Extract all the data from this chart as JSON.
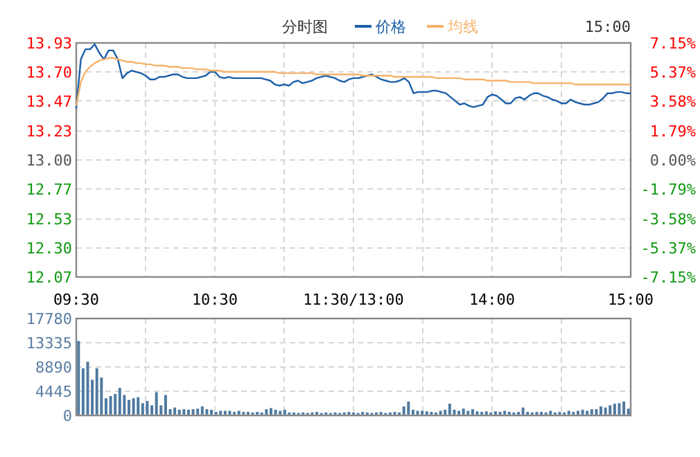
{
  "chart_data": [
    {
      "type": "line",
      "title": "分时图",
      "legend": "top",
      "grid": true,
      "annotations": [
        "15:00"
      ],
      "categories": [
        "09:30",
        null,
        null,
        null,
        null,
        null,
        null,
        null,
        null,
        null,
        null,
        null,
        null,
        null,
        null,
        null,
        null,
        null,
        null,
        null,
        null,
        null,
        null,
        null,
        null,
        null,
        null,
        null,
        null,
        null,
        "10:30",
        null,
        null,
        null,
        null,
        null,
        null,
        null,
        null,
        null,
        null,
        null,
        null,
        null,
        null,
        null,
        null,
        null,
        null,
        null,
        null,
        null,
        null,
        null,
        null,
        null,
        null,
        null,
        null,
        null,
        "11:30/13:00",
        null,
        null,
        null,
        null,
        null,
        null,
        null,
        null,
        null,
        null,
        null,
        null,
        null,
        null,
        null,
        null,
        null,
        null,
        null,
        null,
        null,
        null,
        null,
        null,
        null,
        null,
        null,
        null,
        null,
        "14:00",
        null,
        null,
        null,
        null,
        null,
        null,
        null,
        null,
        null,
        null,
        null,
        null,
        null,
        null,
        null,
        null,
        null,
        null,
        null,
        null,
        null,
        null,
        null,
        null,
        null,
        null,
        null,
        null,
        null,
        "15:00"
      ],
      "ylim": [
        12.07,
        13.93
      ],
      "yticks": [
        13.93,
        {
          "value": 13.7,
          "label": "13.70"
        },
        13.47,
        13.23,
        {
          "value": 13.0,
          "label": "13.00"
        },
        12.77,
        12.53,
        {
          "value": 12.3,
          "label": "12.30"
        },
        12.07
      ],
      "y2lim": [
        -7.15,
        7.15
      ],
      "y2ticks": [
        {
          "value": 7.15,
          "label": "7.15%"
        },
        {
          "value": 5.37,
          "label": "5.37%"
        },
        {
          "value": 3.58,
          "label": "3.58%"
        },
        {
          "value": 1.79,
          "label": "1.79%"
        },
        {
          "value": 0,
          "label": "0.00%"
        },
        {
          "value": -1.79,
          "label": "-1.79%"
        },
        {
          "value": -3.58,
          "label": "-3.58%"
        },
        {
          "value": -5.37,
          "label": "-5.37%"
        },
        {
          "value": -7.15,
          "label": "-7.15%"
        }
      ],
      "series": [
        {
          "name": "价格",
          "color": "#1c5fa8",
          "values": [
            13.41,
            13.8,
            13.88,
            13.88,
            13.92,
            13.85,
            13.8,
            13.87,
            13.87,
            13.8,
            13.65,
            13.69,
            13.71,
            13.7,
            13.69,
            13.67,
            13.64,
            13.64,
            13.66,
            13.66,
            13.67,
            13.68,
            13.68,
            13.66,
            13.65,
            13.65,
            13.65,
            13.66,
            13.67,
            13.7,
            13.7,
            13.66,
            13.65,
            13.66,
            13.65,
            13.65,
            13.65,
            13.65,
            13.65,
            13.65,
            13.65,
            13.64,
            13.63,
            13.6,
            13.59,
            13.6,
            13.59,
            13.62,
            13.63,
            13.61,
            13.62,
            13.63,
            13.65,
            13.66,
            13.67,
            13.66,
            13.65,
            13.63,
            13.62,
            13.64,
            13.65,
            13.65,
            13.66,
            13.67,
            13.68,
            13.66,
            13.64,
            13.63,
            13.62,
            13.62,
            13.63,
            13.65,
            13.62,
            13.53,
            13.54,
            13.54,
            13.54,
            13.55,
            13.55,
            13.54,
            13.53,
            13.5,
            13.47,
            13.44,
            13.45,
            13.43,
            13.42,
            13.43,
            13.44,
            13.5,
            13.52,
            13.51,
            13.48,
            13.45,
            13.45,
            13.49,
            13.5,
            13.48,
            13.51,
            13.53,
            13.53,
            13.51,
            13.5,
            13.48,
            13.47,
            13.45,
            13.45,
            13.48,
            13.46,
            13.45,
            13.44,
            13.44,
            13.45,
            13.46,
            13.49,
            13.53,
            13.53,
            13.54,
            13.54,
            13.53,
            13.53
          ]
        },
        {
          "name": "均线",
          "color": "#f5b26b",
          "values": [
            13.43,
            13.62,
            13.7,
            13.74,
            13.77,
            13.79,
            13.8,
            13.81,
            13.81,
            13.8,
            13.79,
            13.78,
            13.78,
            13.77,
            13.77,
            13.76,
            13.76,
            13.75,
            13.75,
            13.75,
            13.74,
            13.74,
            13.74,
            13.73,
            13.73,
            13.73,
            13.72,
            13.72,
            13.72,
            13.71,
            13.71,
            13.71,
            13.7,
            13.7,
            13.7,
            13.7,
            13.7,
            13.7,
            13.7,
            13.7,
            13.7,
            13.7,
            13.7,
            13.7,
            13.69,
            13.69,
            13.69,
            13.69,
            13.69,
            13.69,
            13.69,
            13.69,
            13.68,
            13.68,
            13.68,
            13.68,
            13.68,
            13.68,
            13.68,
            13.68,
            13.68,
            13.68,
            13.67,
            13.67,
            13.67,
            13.67,
            13.67,
            13.67,
            13.67,
            13.66,
            13.66,
            13.66,
            13.66,
            13.66,
            13.66,
            13.66,
            13.66,
            13.66,
            13.65,
            13.65,
            13.65,
            13.65,
            13.65,
            13.65,
            13.64,
            13.64,
            13.64,
            13.64,
            13.64,
            13.63,
            13.63,
            13.63,
            13.63,
            13.63,
            13.62,
            13.62,
            13.62,
            13.62,
            13.62,
            13.61,
            13.61,
            13.61,
            13.61,
            13.61,
            13.61,
            13.61,
            13.61,
            13.61,
            13.6,
            13.6,
            13.6,
            13.6,
            13.6,
            13.6,
            13.6,
            13.6,
            13.6,
            13.6,
            13.6,
            13.6,
            13.6
          ]
        }
      ]
    },
    {
      "type": "bar",
      "grid": true,
      "tick_labels": "y",
      "color": "#4f7aa0",
      "categories": [
        null,
        null,
        null,
        null,
        null,
        null,
        null,
        null,
        null,
        null,
        null,
        null,
        null,
        null,
        null,
        null,
        null,
        null,
        null,
        null,
        null,
        null,
        null,
        null,
        null,
        null,
        null,
        null,
        null,
        null,
        null,
        null,
        null,
        null,
        null,
        null,
        null,
        null,
        null,
        null,
        null,
        null,
        null,
        null,
        null,
        null,
        null,
        null,
        null,
        null,
        null,
        null,
        null,
        null,
        null,
        null,
        null,
        null,
        null,
        null,
        null,
        null,
        null,
        null,
        null,
        null,
        null,
        null,
        null,
        null,
        null,
        null,
        null,
        null,
        null,
        null,
        null,
        null,
        null,
        null,
        null,
        null,
        null,
        null,
        null,
        null,
        null,
        null,
        null,
        null,
        null,
        null,
        null,
        null,
        null,
        null,
        null,
        null,
        null,
        null,
        null,
        null,
        null,
        null,
        null,
        null,
        null,
        null,
        null,
        null,
        null,
        null,
        null,
        null,
        null,
        null,
        null,
        null,
        null,
        null,
        null
      ],
      "ylim": [
        0,
        17780
      ],
      "yticks": [
        0,
        4445,
        8890,
        13335,
        17780
      ],
      "values": [
        13500,
        8500,
        9700,
        6400,
        8500,
        6800,
        3000,
        3400,
        3800,
        4900,
        3600,
        2700,
        3000,
        3200,
        2100,
        2500,
        1700,
        4100,
        1700,
        3600,
        1000,
        1300,
        900,
        1000,
        900,
        1000,
        1100,
        1500,
        1000,
        900,
        500,
        700,
        700,
        700,
        500,
        700,
        500,
        500,
        400,
        500,
        400,
        1000,
        1200,
        900,
        700,
        900,
        400,
        400,
        300,
        400,
        300,
        400,
        500,
        300,
        400,
        300,
        400,
        300,
        400,
        500,
        400,
        300,
        500,
        400,
        300,
        400,
        500,
        300,
        400,
        500,
        400,
        1500,
        2400,
        900,
        700,
        700,
        600,
        500,
        400,
        700,
        900,
        2000,
        900,
        700,
        1100,
        700,
        1000,
        600,
        500,
        600,
        400,
        600,
        500,
        700,
        500,
        400,
        500,
        1300,
        500,
        400,
        500,
        500,
        400,
        700,
        400,
        500,
        400,
        700,
        500,
        700,
        900,
        700,
        1000,
        1000,
        1500,
        1300,
        1700,
        2000,
        2100,
        2400,
        1100
      ]
    }
  ]
}
